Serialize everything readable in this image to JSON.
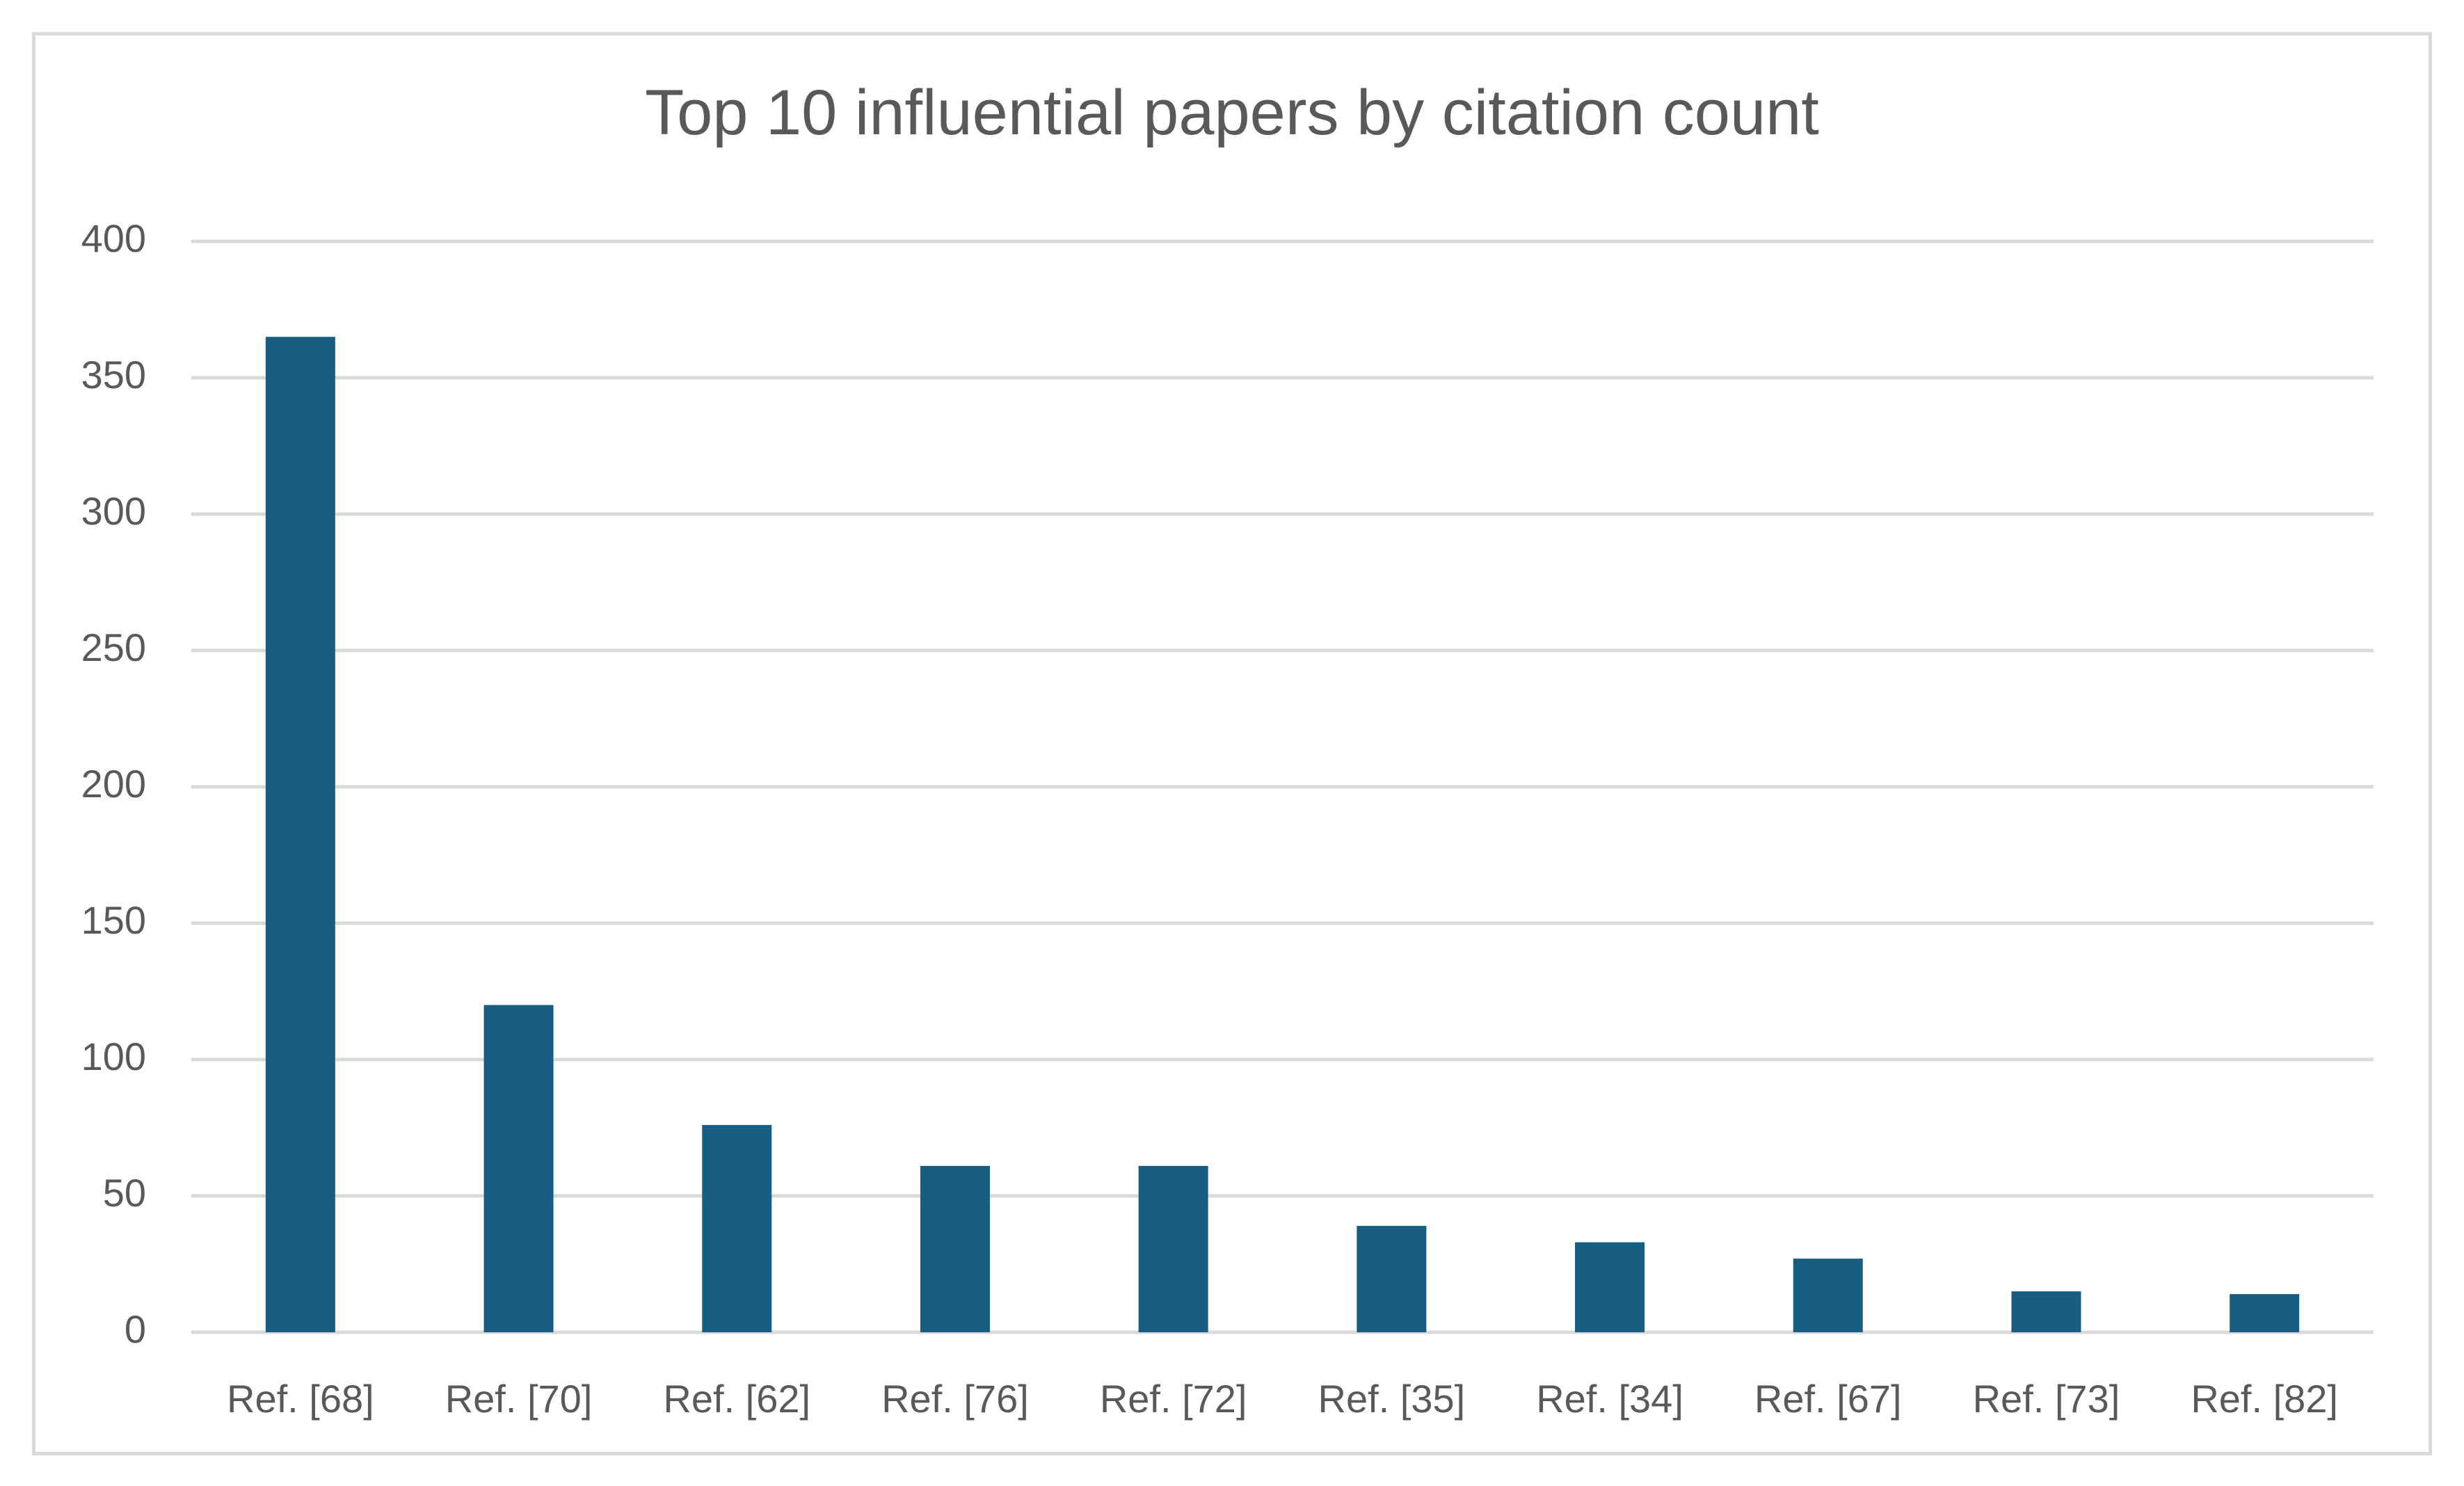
{
  "chart_data": {
    "type": "bar",
    "title": "Top 10 influential papers by citation count",
    "xlabel": "",
    "ylabel": "",
    "categories": [
      "Ref. [68]",
      "Ref. [70]",
      "Ref. [62]",
      "Ref. [76]",
      "Ref. [72]",
      "Ref. [35]",
      "Ref. [34]",
      "Ref. [67]",
      "Ref. [73]",
      "Ref. [82]"
    ],
    "values": [
      365,
      120,
      76,
      61,
      61,
      39,
      33,
      27,
      15,
      14
    ],
    "ylim": [
      0,
      400
    ],
    "yticks": [
      0,
      50,
      100,
      150,
      200,
      250,
      300,
      350,
      400
    ],
    "grid": true,
    "legend": "none",
    "colors": {
      "bar": "#175e82",
      "grid": "#d9d9d9",
      "text": "#595959"
    }
  }
}
